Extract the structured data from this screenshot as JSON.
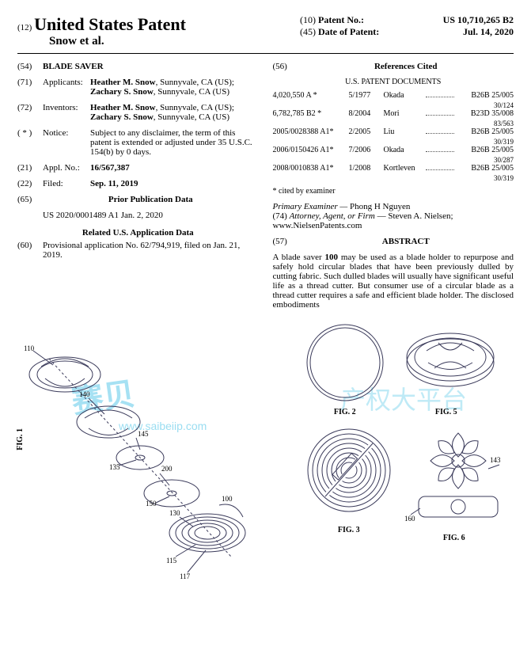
{
  "header": {
    "code12": "(12)",
    "title": "United States Patent",
    "inventors_line": "Snow et al.",
    "code10": "(10)",
    "patent_no_label": "Patent No.:",
    "patent_no": "US 10,710,265 B2",
    "code45": "(45)",
    "date_label": "Date of Patent:",
    "date": "Jul. 14, 2020"
  },
  "left": {
    "f54": {
      "num": "(54)",
      "label": "",
      "value_bold": "BLADE SAVER"
    },
    "f71": {
      "num": "(71)",
      "label": "Applicants:",
      "value": "Heather M. Snow, Sunnyvale, CA (US); Zachary S. Snow, Sunnyvale, CA (US)"
    },
    "f72": {
      "num": "(72)",
      "label": "Inventors:",
      "value": "Heather M. Snow, Sunnyvale, CA (US); Zachary S. Snow, Sunnyvale, CA (US)"
    },
    "fstar": {
      "num": "( * )",
      "label": "Notice:",
      "value": "Subject to any disclaimer, the term of this patent is extended or adjusted under 35 U.S.C. 154(b) by 0 days."
    },
    "f21": {
      "num": "(21)",
      "label": "Appl. No.:",
      "value": "16/567,387"
    },
    "f22": {
      "num": "(22)",
      "label": "Filed:",
      "value_bold": "Sep. 11, 2019"
    },
    "f65": {
      "num": "(65)",
      "title": "Prior Publication Data",
      "line": "US 2020/0001489 A1    Jan. 2, 2020"
    },
    "relappdata_title": "Related U.S. Application Data",
    "f60": {
      "num": "(60)",
      "value": "Provisional application No. 62/794,919, filed on Jan. 21, 2019."
    }
  },
  "right": {
    "f56": {
      "num": "(56)",
      "title": "References Cited",
      "subtitle": "U.S. PATENT DOCUMENTS"
    },
    "refs": [
      {
        "n": "4,020,550 A *",
        "d": "5/1977",
        "name": "Okada",
        "cls": "B26B 25/005",
        "sub": "30/124"
      },
      {
        "n": "6,782,785 B2 *",
        "d": "8/2004",
        "name": "Mori",
        "cls": "B23D 35/008",
        "sub": "83/563"
      },
      {
        "n": "2005/0028388 A1*",
        "d": "2/2005",
        "name": "Liu",
        "cls": "B26B 25/005",
        "sub": "30/319"
      },
      {
        "n": "2006/0150426 A1*",
        "d": "7/2006",
        "name": "Okada",
        "cls": "B26B 25/005",
        "sub": "30/287"
      },
      {
        "n": "2008/0010838 A1*",
        "d": "1/2008",
        "name": "Kortleven",
        "cls": "B26B 25/005",
        "sub": "30/319"
      }
    ],
    "cited_note": "* cited by examiner",
    "examiner_label": "Primary Examiner —",
    "examiner": "Phong H Nguyen",
    "attorney_label": "(74) Attorney, Agent, or Firm —",
    "attorney": "Steven A. Nielsen; www.NielsenPatents.com",
    "abstract_num": "(57)",
    "abstract_title": "ABSTRACT",
    "abstract_body": "A blade saver 100 may be used as a blade holder to repurpose and safely hold circular blades that have been previously dulled by cutting fabric. Such dulled blades will usually have significant useful life as a thread cutter. But consumer use of a circular blade as a thread cutter requires a safe and efficient blade holder. The disclosed embodiments"
  },
  "figs": {
    "f1": "FIG. 1",
    "f2": "FIG. 2",
    "f3": "FIG. 3",
    "f5": "FIG. 5",
    "f6": "FIG. 6",
    "lead100": "100",
    "lead110": "110",
    "lead115": "115",
    "lead117": "117",
    "lead130": "130",
    "lead135": "135",
    "lead140": "140",
    "lead145": "145",
    "lead150": "150",
    "lead200": "200",
    "lead143": "143",
    "lead160": "160"
  },
  "watermark": {
    "main": "赛贝",
    "url": "www.saibeiip.com",
    "right": "产权大平台"
  }
}
